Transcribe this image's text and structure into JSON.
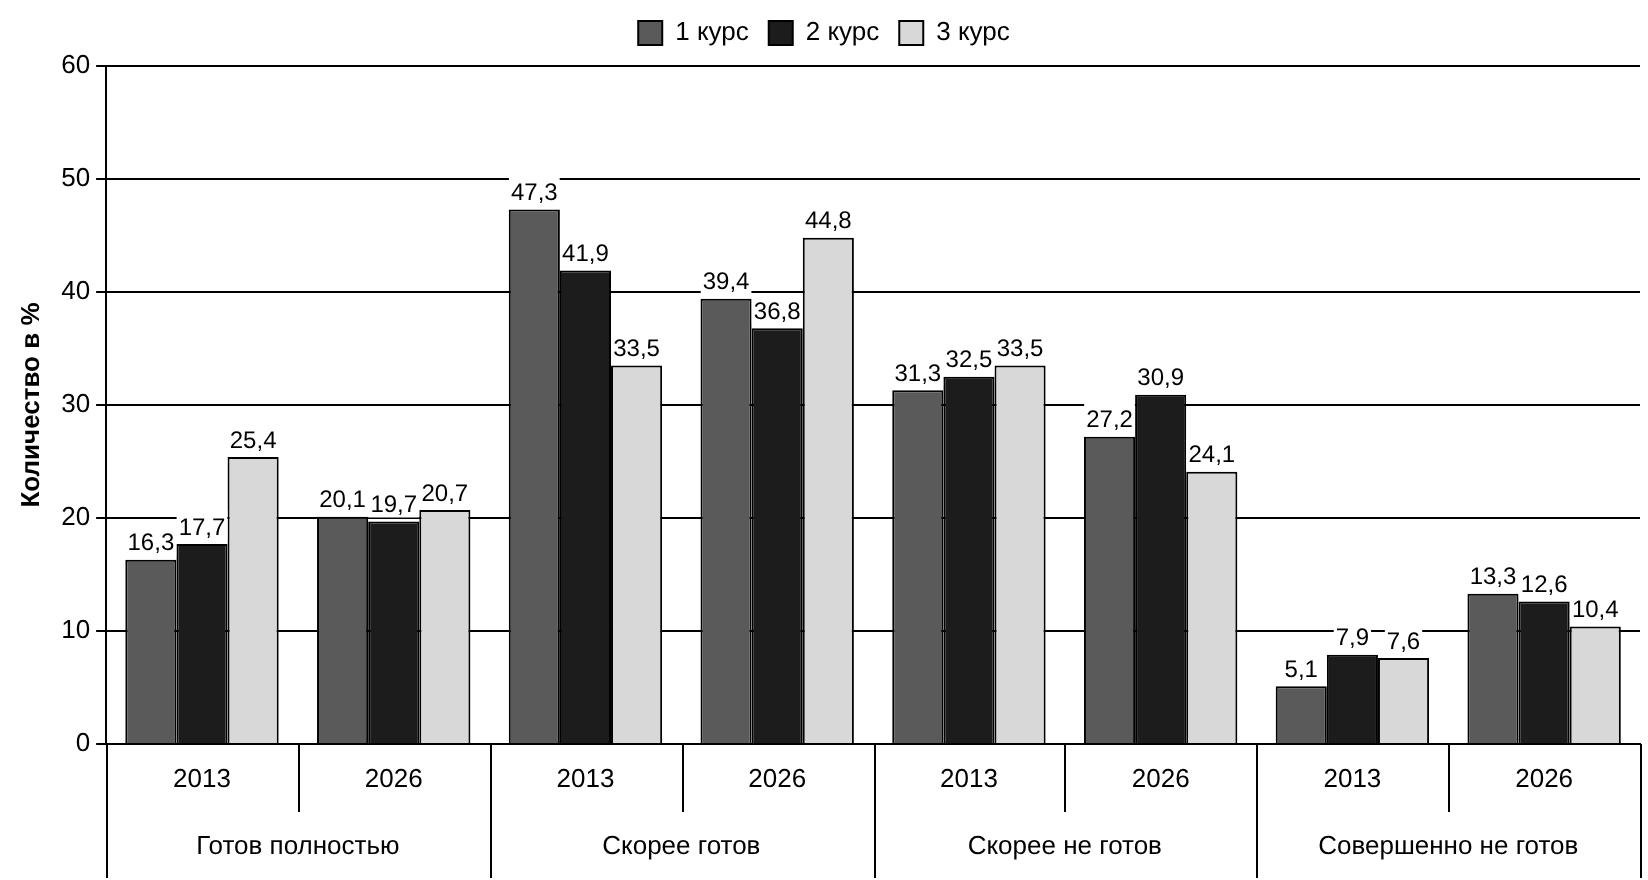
{
  "chart_data": {
    "type": "bar",
    "ylabel": "Количество в %",
    "categories": [
      "2013",
      "2026",
      "2013",
      "2026",
      "2013",
      "2026",
      "2013",
      "2026"
    ],
    "series": [
      {
        "name": "1 курс",
        "color": "#5a5a5a",
        "values": [
          16.3,
          20.1,
          47.3,
          39.4,
          31.3,
          27.2,
          5.1,
          13.3
        ],
        "value_labels": [
          "16,3",
          "20,1",
          "47,3",
          "39,4",
          "31,3",
          "27,2",
          "5,1",
          "13,3"
        ]
      },
      {
        "name": "2 курс",
        "color": "#1c1c1c",
        "values": [
          17.7,
          19.7,
          41.9,
          36.8,
          32.5,
          30.9,
          7.9,
          12.6
        ],
        "value_labels": [
          "17,7",
          "19,7",
          "41,9",
          "36,8",
          "32,5",
          "30,9",
          "7,9",
          "12,6"
        ]
      },
      {
        "name": "3 курс",
        "color": "#d8d8d8",
        "values": [
          25.4,
          20.7,
          33.5,
          44.8,
          33.5,
          24.1,
          7.6,
          10.4
        ],
        "value_labels": [
          "25,4",
          "20,7",
          "33,5",
          "44,8",
          "33,5",
          "24,1",
          "7,6",
          "10,4"
        ]
      }
    ],
    "annotations": [
      "Готов полностью",
      "Скорее готов",
      "Скорее не готов",
      "Совершенно не готов"
    ],
    "ylim": [
      0,
      60
    ],
    "yticks": [
      0,
      10,
      20,
      30,
      40,
      50,
      60
    ],
    "grid": "y",
    "legend": "top"
  }
}
